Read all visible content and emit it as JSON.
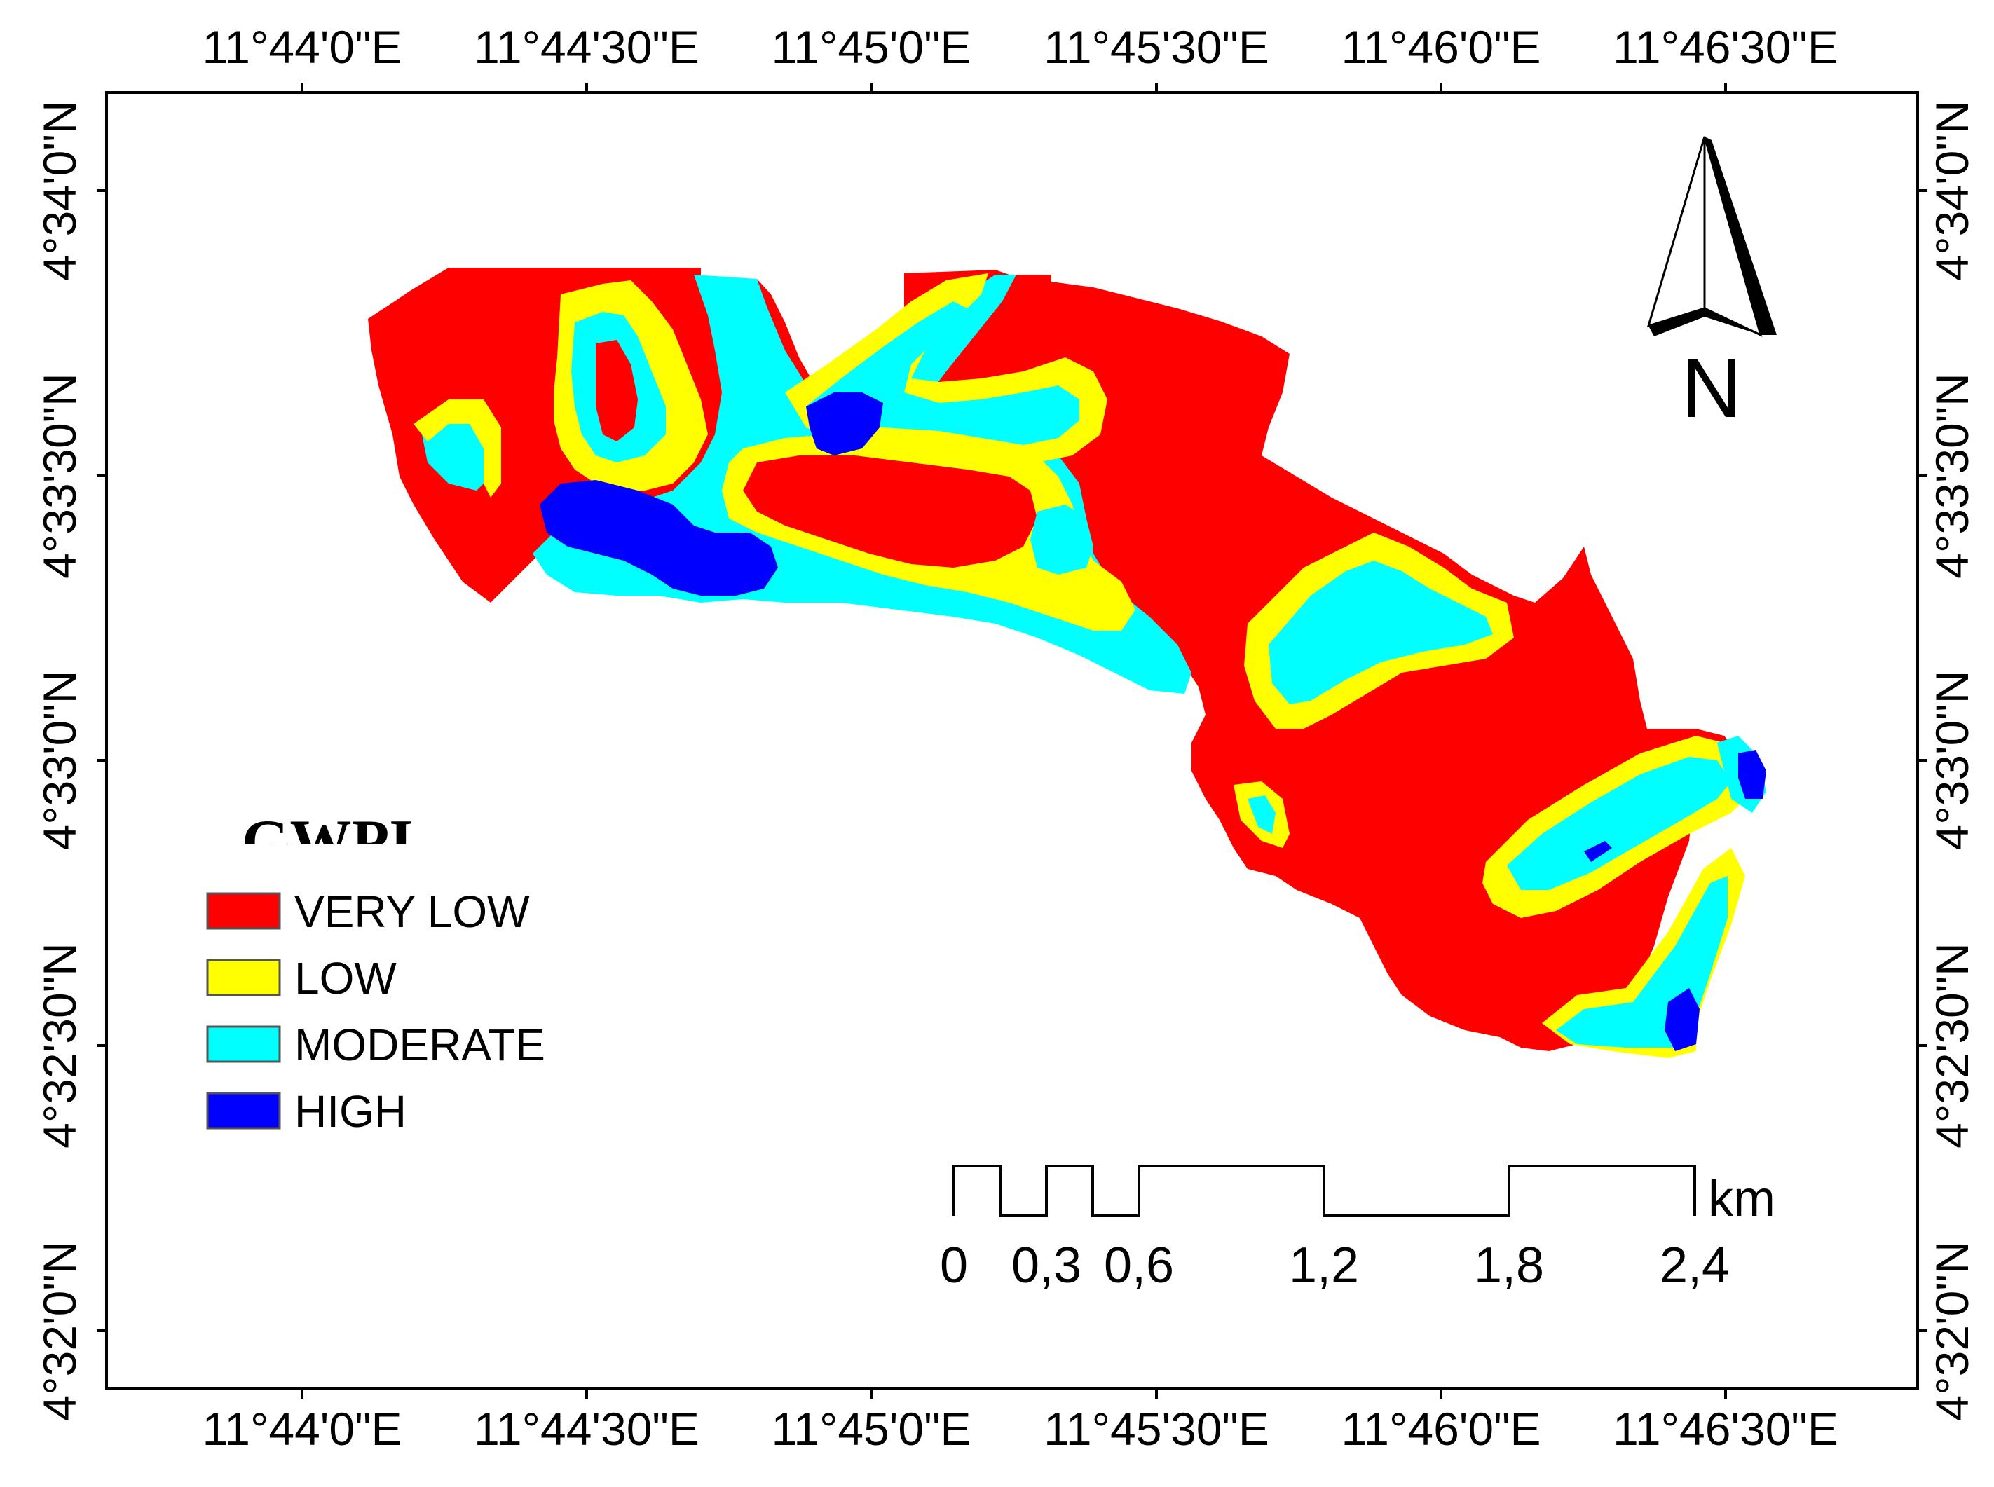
{
  "map": {
    "top_lon_labels": [
      "11°44'0\"E",
      "11°44'30\"E",
      "11°45'0\"E",
      "11°45'30\"E",
      "11°46'0\"E",
      "11°46'30\"E"
    ],
    "bottom_lon_labels": [
      "11°44'0\"E",
      "11°44'30\"E",
      "11°45'0\"E",
      "11°45'30\"E",
      "11°46'0\"E",
      "11°46'30\"E"
    ],
    "left_lat_labels": [
      "4°34'0\"N",
      "4°33'30\"N",
      "4°33'0\"N",
      "4°32'30\"N",
      "4°32'0\"N"
    ],
    "right_lat_labels": [
      "4°34'0\"N",
      "4°33'30\"N",
      "4°33'0\"N",
      "4°32'30\"N",
      "4°32'0\"N"
    ]
  },
  "legend": {
    "title": "GWPI",
    "items": [
      {
        "label": "VERY LOW",
        "color": "#ff0000"
      },
      {
        "label": "LOW",
        "color": "#ffff00"
      },
      {
        "label": "MODERATE",
        "color": "#00ffff"
      },
      {
        "label": "HIGH",
        "color": "#0000ff"
      }
    ]
  },
  "north_arrow": {
    "label": "N",
    "icon": "north-arrow-icon"
  },
  "scale_bar": {
    "unit": "km",
    "labels": [
      "0",
      "0,3",
      "0,6",
      "1,2",
      "1,8",
      "2,4"
    ]
  }
}
